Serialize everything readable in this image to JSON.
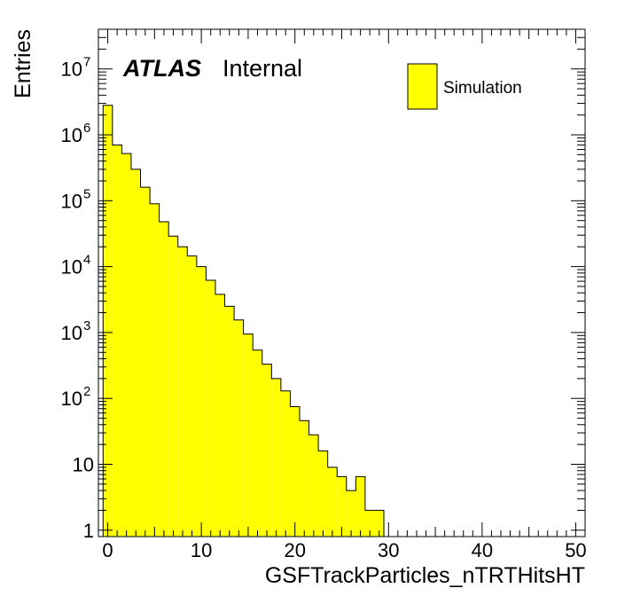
{
  "chart_data": {
    "type": "bar",
    "subtype": "histogram",
    "xlabel": "GSFTrackParticles_nTRTHitsHT",
    "ylabel": "Entries",
    "xlim": [
      -1,
      51
    ],
    "ylim": [
      0.8,
      40000000
    ],
    "yscale": "log",
    "bin_width": 1,
    "bin_low_edges": [
      -0.5,
      0.5,
      1.5,
      2.5,
      3.5,
      4.5,
      5.5,
      6.5,
      7.5,
      8.5,
      9.5,
      10.5,
      11.5,
      12.5,
      13.5,
      14.5,
      15.5,
      16.5,
      17.5,
      18.5,
      19.5,
      20.5,
      21.5,
      22.5,
      23.5,
      24.5,
      25.5,
      26.5,
      27.5,
      28.5
    ],
    "values": [
      2800000,
      700000,
      520000,
      300000,
      160000,
      90000,
      48000,
      29000,
      20000,
      14500,
      10000,
      6200,
      3800,
      2500,
      1550,
      950,
      540,
      330,
      200,
      130,
      75,
      46,
      28,
      16,
      9,
      6.5,
      4,
      6.5,
      2,
      2
    ],
    "x_ticks": [
      "0",
      "10",
      "20",
      "30",
      "40",
      "50"
    ],
    "y_ticks": [
      {
        "base": "1",
        "exp": ""
      },
      {
        "base": "10",
        "exp": ""
      },
      {
        "base": "10",
        "exp": "2"
      },
      {
        "base": "10",
        "exp": "3"
      },
      {
        "base": "10",
        "exp": "4"
      },
      {
        "base": "10",
        "exp": "5"
      },
      {
        "base": "10",
        "exp": "6"
      },
      {
        "base": "10",
        "exp": "7"
      }
    ],
    "series": [
      {
        "name": "Simulation",
        "color": "#ffff00",
        "line_color": "#000000"
      }
    ],
    "legend": {
      "placement": "top-right",
      "label": "Simulation"
    },
    "grid": false,
    "annotation": {
      "bold": "ATLAS",
      "normal": "Internal"
    }
  }
}
